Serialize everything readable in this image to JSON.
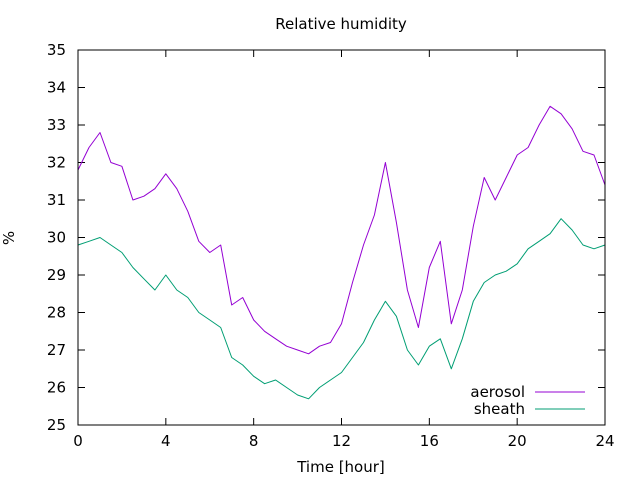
{
  "chart_data": {
    "type": "line",
    "title": "Relative humidity",
    "xlabel": "Time [hour]",
    "ylabel": "%",
    "xlim": [
      0,
      24
    ],
    "ylim": [
      25,
      35
    ],
    "xticks": [
      0,
      4,
      8,
      12,
      16,
      20,
      24
    ],
    "yticks": [
      25,
      26,
      27,
      28,
      29,
      30,
      31,
      32,
      33,
      34,
      35
    ],
    "grid": false,
    "legend_position": "bottom-right",
    "series": [
      {
        "name": "aerosol",
        "color": "#9400d3",
        "x": [
          0,
          0.5,
          1,
          1.5,
          2,
          2.5,
          3,
          3.5,
          4,
          4.5,
          5,
          5.5,
          6,
          6.5,
          7,
          7.5,
          8,
          8.5,
          9,
          9.5,
          10,
          10.5,
          11,
          11.5,
          12,
          12.5,
          13,
          13.5,
          14,
          14.5,
          15,
          15.5,
          16,
          16.5,
          17,
          17.5,
          18,
          18.5,
          19,
          19.5,
          20,
          20.5,
          21,
          21.5,
          22,
          22.5,
          23,
          23.5,
          24
        ],
        "y": [
          31.8,
          32.4,
          32.8,
          32.0,
          31.9,
          31.0,
          31.1,
          31.3,
          31.7,
          31.3,
          30.7,
          29.9,
          29.6,
          29.8,
          28.2,
          28.4,
          27.8,
          27.5,
          27.3,
          27.1,
          27.0,
          26.9,
          27.1,
          27.2,
          27.7,
          28.8,
          29.8,
          30.6,
          32.0,
          30.4,
          28.6,
          27.6,
          29.2,
          29.9,
          27.7,
          28.6,
          30.3,
          31.6,
          31.0,
          31.6,
          32.2,
          32.4,
          33.0,
          33.5,
          33.3,
          32.9,
          32.3,
          32.2,
          31.4
        ]
      },
      {
        "name": "sheath",
        "color": "#009e73",
        "x": [
          0,
          0.5,
          1,
          1.5,
          2,
          2.5,
          3,
          3.5,
          4,
          4.5,
          5,
          5.5,
          6,
          6.5,
          7,
          7.5,
          8,
          8.5,
          9,
          9.5,
          10,
          10.5,
          11,
          11.5,
          12,
          12.5,
          13,
          13.5,
          14,
          14.5,
          15,
          15.5,
          16,
          16.5,
          17,
          17.5,
          18,
          18.5,
          19,
          19.5,
          20,
          20.5,
          21,
          21.5,
          22,
          22.5,
          23,
          23.5,
          24
        ],
        "y": [
          29.8,
          29.9,
          30.0,
          29.8,
          29.6,
          29.2,
          28.9,
          28.6,
          29.0,
          28.6,
          28.4,
          28.0,
          27.8,
          27.6,
          26.8,
          26.6,
          26.3,
          26.1,
          26.2,
          26.0,
          25.8,
          25.7,
          26.0,
          26.2,
          26.4,
          26.8,
          27.2,
          27.8,
          28.3,
          27.9,
          27.0,
          26.6,
          27.1,
          27.3,
          26.5,
          27.3,
          28.3,
          28.8,
          29.0,
          29.1,
          29.3,
          29.7,
          29.9,
          30.1,
          30.5,
          30.2,
          29.8,
          29.7,
          29.8
        ]
      }
    ]
  }
}
